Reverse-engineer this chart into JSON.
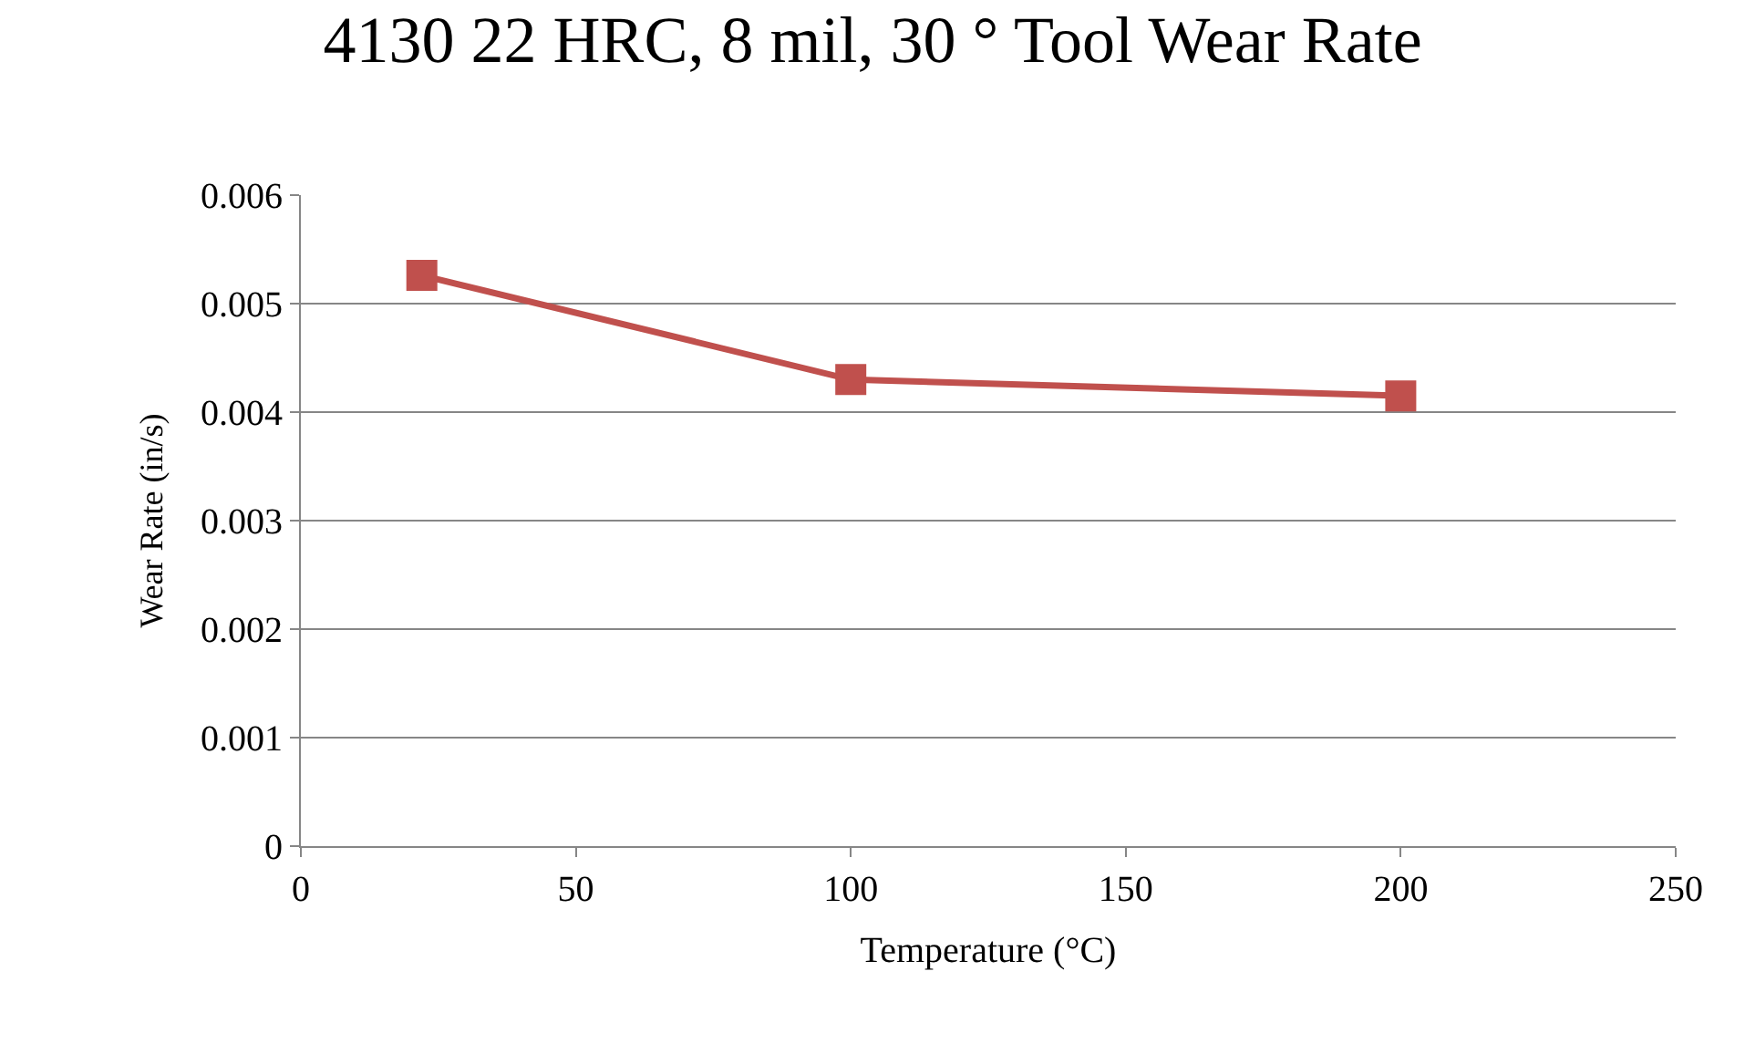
{
  "chart_data": {
    "type": "line",
    "title": "4130 22 HRC, 8 mil, 30 ° Tool Wear Rate",
    "xlabel": "Temperature (°C)",
    "ylabel": "Wear Rate (in/s)",
    "x": [
      22,
      100,
      200
    ],
    "series": [
      {
        "color": "#c0504d",
        "values": [
          0.00526,
          0.0043,
          0.00415
        ]
      }
    ],
    "xlim": [
      0,
      250
    ],
    "xticks": [
      0,
      50,
      100,
      150,
      200,
      250
    ],
    "ylim": [
      0,
      0.006
    ],
    "yticks": [
      0,
      0.001,
      0.002,
      0.003,
      0.004,
      0.005,
      0.006
    ],
    "grid": "y",
    "marker": "square",
    "line_style": "solid"
  }
}
